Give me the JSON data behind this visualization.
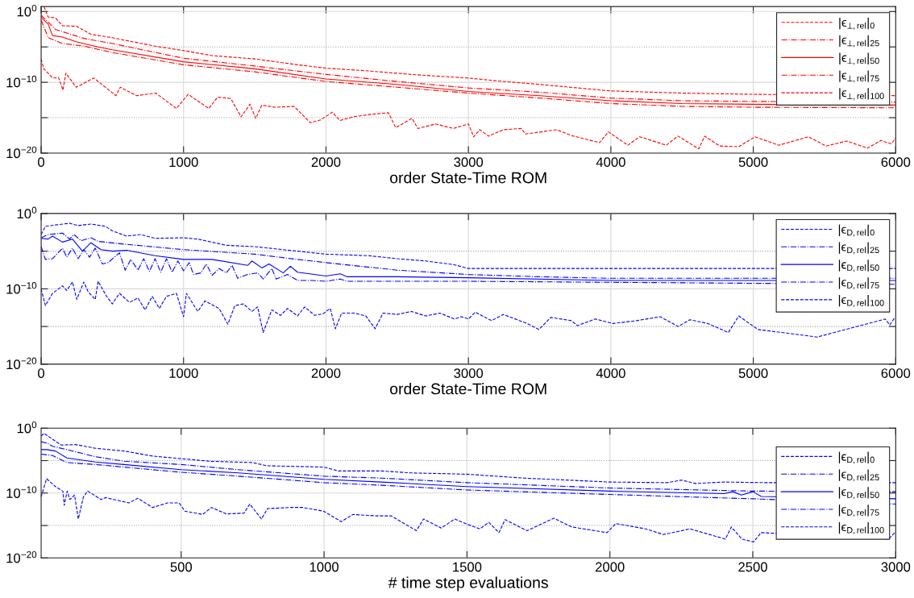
{
  "chart_data": [
    {
      "type": "line",
      "xlabel": "order State-Time ROM",
      "log": "y",
      "grid": true,
      "legend": "top right",
      "xlim": [
        0,
        6000
      ],
      "xticks": [
        0,
        1000,
        2000,
        3000,
        4000,
        5000,
        6000
      ],
      "ylim": [
        1e-20,
        5
      ],
      "yticks": [
        {
          "value": 1e-20,
          "label": "10$^{−20}$"
        },
        {
          "value": 1e-15,
          "label": null
        },
        {
          "value": 1e-10,
          "label": "10$^{−10}$"
        },
        {
          "value": 1e-05,
          "label": null
        },
        {
          "value": 1,
          "label": "10$^{0}$"
        }
      ],
      "series": [
        {
          "name": "|ϵ$_{⊥,rel}$|$_{0}$",
          "color": "#ff0000",
          "line_style": "dashed",
          "x": [
            20,
            50,
            100,
            150,
            250,
            350,
            500,
            650,
            800,
            1000,
            1200,
            1500,
            1800,
            2000,
            2300,
            2600,
            3000,
            3200,
            3500,
            4000,
            4500,
            5000,
            6000
          ],
          "values": [
            5,
            0.16,
            0.13,
            0.01,
            0.008,
            0.0006,
            0.0002,
            5e-05,
            1.3e-05,
            3e-06,
            6e-07,
            2e-07,
            3e-08,
            1e-08,
            4e-09,
            1.3e-09,
            4e-10,
            1.6e-10,
            5e-11,
            6e-12,
            3e-12,
            2e-12,
            1.3e-12
          ]
        },
        {
          "name": "|ϵ$_{⊥,rel}$|$_{25}$",
          "color": "#ff0000",
          "line_style": "dashdot",
          "x": [
            0,
            100,
            300,
            500,
            1000,
            1500,
            2000,
            2500,
            3000,
            3500,
            4000,
            4500,
            5000,
            6000
          ],
          "values": [
            0.3,
            0.003,
            0.00016,
            3e-05,
            2.5e-07,
            2e-08,
            1.3e-09,
            1.3e-10,
            1.6e-11,
            4e-12,
            6e-13,
            2.5e-13,
            2e-13,
            1.6e-13
          ]
        },
        {
          "name": "|ϵ$_{⊥,rel}$|$_{50}$",
          "color": "#ff0000",
          "line_style": "solid",
          "x": [
            0,
            50,
            80,
            150,
            250,
            400,
            500,
            1000,
            1500,
            2000,
            2500,
            3000,
            3500,
            4000,
            4500,
            5000,
            6000
          ],
          "values": [
            0.16,
            0.016,
            0.0004,
            0.00025,
            5e-05,
            1e-05,
            4e-06,
            8e-08,
            8e-09,
            3e-10,
            5e-11,
            5e-12,
            1.3e-12,
            2.5e-13,
            1e-13,
            8e-14,
            6e-14
          ]
        },
        {
          "name": "|ϵ$_{⊥,rel}$|$_{75}$",
          "color": "#ff0000",
          "line_style": "dashdot",
          "x": [
            0,
            50,
            150,
            300,
            500,
            1000,
            1500,
            2000,
            2500,
            3000,
            3500,
            4000,
            4500,
            5000,
            6000
          ],
          "values": [
            0.06,
            0.0002,
            3e-05,
            1.3e-05,
            1.6e-06,
            3e-08,
            3e-09,
            1.3e-10,
            2e-11,
            3e-12,
            6e-13,
            1e-13,
            4e-14,
            3e-14,
            2.5e-14
          ]
        },
        {
          "name": "|ϵ$_{⊥,rel}$|$_{100}$",
          "color": "#ff0000",
          "line_style": "dashed",
          "x": [
            0,
            19,
            81,
            122,
            153,
            174,
            246,
            370,
            525,
            556,
            670,
            805,
            950,
            1032,
            1177,
            1239,
            1332,
            1404,
            1466,
            1507,
            1549,
            1642,
            1776,
            1890,
            1963,
            2045,
            2097,
            2190,
            2314,
            2438,
            2490,
            2604,
            2645,
            2770,
            2894,
            3000,
            3037,
            3079,
            3141,
            3245,
            3370,
            3401,
            3620,
            3723,
            3921,
            3983,
            4119,
            4202,
            4389,
            4472,
            4617,
            4659,
            4763,
            4898,
            5012,
            5179,
            5387,
            5511,
            5657,
            5802,
            5896,
            5969,
            6000
          ],
          "values": [
            2e-07,
            8e-09,
            4e-10,
            5e-10,
            8e-12,
            2e-09,
            2e-11,
            4e-10,
            1.3e-12,
            2e-11,
            1.3e-12,
            3e-12,
            2e-14,
            2e-12,
            2e-14,
            8e-13,
            5e-13,
            1.3e-15,
            8e-14,
            8e-16,
            6e-14,
            3e-14,
            4e-14,
            2e-16,
            5e-16,
            6e-15,
            4e-16,
            1.3e-15,
            3e-15,
            5e-15,
            4e-17,
            8e-16,
            3e-17,
            1.3e-16,
            3e-17,
            1.3e-16,
            2e-18,
            2e-17,
            2.5e-18,
            2e-17,
            3e-17,
            5e-18,
            2e-17,
            3e-18,
            3e-19,
            1e-17,
            1.3e-19,
            2e-18,
            1.3e-19,
            2.5e-18,
            4e-20,
            2.5e-18,
            1e-19,
            8e-20,
            2e-18,
            1.3e-19,
            2e-18,
            1e-19,
            5e-19,
            5e-20,
            6e-19,
            2e-19,
            1.3e-18
          ]
        }
      ]
    },
    {
      "type": "line",
      "xlabel": "order State-Time ROM",
      "log": "y",
      "grid": true,
      "legend": "top right",
      "xlim": [
        0,
        6000
      ],
      "xticks": [
        0,
        1000,
        2000,
        3000,
        4000,
        5000,
        6000
      ],
      "ylim": [
        1e-20,
        1
      ],
      "yticks": [
        {
          "value": 1e-20,
          "label": "10$^{−20}$"
        },
        {
          "value": 1e-15,
          "label": null
        },
        {
          "value": 1e-10,
          "label": "10$^{−10}$"
        },
        {
          "value": 1e-05,
          "label": null
        },
        {
          "value": 1,
          "label": "10$^{0}$"
        }
      ],
      "series": [
        {
          "name": "|ϵ$_{D,rel}$|$_{0}$",
          "color": "#0000ff",
          "line_style": "dashed",
          "x": [
            0,
            30,
            100,
            200,
            260,
            350,
            450,
            500,
            600,
            700,
            800,
            1000,
            1100,
            1300,
            1500,
            1800,
            2000,
            2300,
            2500,
            2700,
            2900,
            3000,
            6000
          ],
          "values": [
            0.0016,
            0.02,
            0.03,
            0.05,
            0.025,
            0.04,
            0.02,
            0.005,
            0.001,
            0.0016,
            0.0005,
            0.0006,
            0.0004,
            6e-05,
            4e-05,
            1e-05,
            4e-06,
            2.5e-06,
            1e-06,
            5e-07,
            1.6e-07,
            5e-08,
            5e-08
          ]
        },
        {
          "name": "|ϵ$_{D,rel}$|$_{25}$",
          "color": "#0000ff",
          "line_style": "dashdot",
          "x": [
            0,
            50,
            150,
            200,
            230,
            280,
            350,
            400,
            600,
            1000,
            1500,
            1800,
            2000,
            2500,
            3000,
            3500,
            4000,
            6000
          ],
          "values": [
            0.0006,
            0.0016,
            0.0025,
            0.0004,
            0.0016,
            0.00025,
            0.0006,
            0.0002,
            8e-05,
            1.6e-05,
            4e-06,
            8e-07,
            3e-07,
            3e-08,
            8e-09,
            4e-09,
            2.5e-09,
            2.5e-09
          ]
        },
        {
          "name": "|ϵ$_{D,rel}$|$_{50}$",
          "color": "#0000ff",
          "line_style": "solid",
          "x": [
            0,
            50,
            80,
            150,
            220,
            290,
            350,
            420,
            500,
            600,
            800,
            1000,
            1200,
            1450,
            1480,
            1550,
            1600,
            1700,
            1750,
            1800,
            2000,
            2100,
            2150,
            2500,
            3000,
            4000,
            6000
          ],
          "values": [
            0.0005,
            0.0004,
            0.001,
            0.00016,
            0.0004,
            1e-05,
            0.00013,
            1.6e-05,
            1e-05,
            1.3e-05,
            2.5e-06,
            8e-07,
            8e-07,
            1.3e-07,
            5e-07,
            6e-08,
            2e-07,
            1.3e-08,
            1e-07,
            1.6e-08,
            5e-09,
            1e-08,
            4e-09,
            4e-09,
            3e-09,
            1.3e-09,
            1.3e-09
          ]
        },
        {
          "name": "|ϵ$_{D,rel}$|$_{75}$",
          "color": "#0000ff",
          "line_style": "dashdot",
          "x": [
            0,
            30,
            80,
            150,
            180,
            220,
            260,
            300,
            340,
            380,
            430,
            470,
            550,
            590,
            630,
            680,
            720,
            760,
            800,
            840,
            880,
            920,
            960,
            1000,
            1040,
            1070,
            1120,
            1160,
            1200,
            1250,
            1300,
            1340,
            1380,
            1450,
            1520,
            1560,
            1620,
            1650,
            1730,
            1800,
            1900,
            2000,
            2100,
            2150,
            3000,
            6000
          ],
          "values": [
            4e-05,
            8e-07,
            1e-06,
            2.5e-05,
            1.6e-06,
            2.5e-05,
            1e-06,
            1.6e-05,
            1.6e-06,
            2.5e-05,
            2e-07,
            3e-07,
            6e-06,
            3e-08,
            8e-07,
            3e-08,
            1e-06,
            2e-08,
            1e-06,
            1.6e-08,
            1e-06,
            1.6e-08,
            5e-07,
            2.5e-08,
            3e-07,
            8e-09,
            1.3e-08,
            2e-07,
            6e-09,
            5e-08,
            1.3e-08,
            1.3e-07,
            2.5e-09,
            8e-09,
            1.3e-08,
            2e-09,
            5e-08,
            2e-09,
            8e-09,
            1.3e-09,
            1.3e-09,
            1e-09,
            2e-09,
            1e-09,
            1e-09,
            4e-10
          ]
        },
        {
          "name": "|ϵ$_{D,rel}$|$_{100}$",
          "color": "#0000ff",
          "line_style": "dashed",
          "x": [
            0,
            30,
            80,
            150,
            180,
            220,
            250,
            300,
            330,
            380,
            400,
            460,
            500,
            550,
            620,
            680,
            730,
            780,
            830,
            880,
            950,
            1000,
            1020,
            1100,
            1150,
            1250,
            1311,
            1360,
            1420,
            1480,
            1520,
            1559,
            1620,
            1680,
            1730,
            1800,
            1850,
            1920,
            1980,
            2030,
            2066,
            2110,
            2200,
            2280,
            2345,
            2400,
            2500,
            2600,
            2700,
            2800,
            2900,
            2950,
            3000,
            3048,
            3162,
            3245,
            3412,
            3495,
            3578,
            3723,
            3765,
            3890,
            4015,
            4181,
            4347,
            4472,
            4555,
            4680,
            4825,
            4898,
            5033,
            5449,
            5927,
            5958,
            5994
          ],
          "values": [
            1e-10,
            6e-13,
            2.5e-11,
            2.5e-10,
            6e-11,
            8e-10,
            4e-12,
            8e-10,
            4e-11,
            4e-12,
            1e-09,
            1e-11,
            1e-12,
            2.5e-11,
            1.6e-12,
            6e-12,
            1.6e-13,
            1e-11,
            2.5e-13,
            1e-11,
            2.5e-11,
            2e-14,
            2.5e-11,
            1e-13,
            2.5e-12,
            2.5e-13,
            2e-15,
            6e-13,
            1e-12,
            1e-13,
            4e-13,
            1.6e-16,
            1.6e-13,
            3e-14,
            2.5e-13,
            2.5e-14,
            4e-13,
            3e-14,
            5e-14,
            2.5e-13,
            5e-16,
            6e-14,
            6e-14,
            2.5e-14,
            5e-16,
            6e-14,
            4e-14,
            1e-13,
            2.5e-14,
            6e-14,
            1e-14,
            2e-14,
            1e-14,
            8e-14,
            6e-15,
            4e-14,
            2.5e-15,
            4e-16,
            1.6e-14,
            6e-15,
            1.3e-15,
            1e-14,
            2.5e-15,
            6e-15,
            2e-14,
            1e-15,
            8e-15,
            2.5e-15,
            1.6e-16,
            2.5e-14,
            4e-16,
            4e-17,
            1e-14,
            1.6e-15,
            1.6e-14
          ]
        }
      ]
    },
    {
      "type": "line",
      "xlabel": "# time step evaluations",
      "log": "y",
      "grid": true,
      "legend": "right",
      "xlim": [
        10,
        3000
      ],
      "xticks": [
        500,
        1000,
        1500,
        2000,
        2500,
        3000
      ],
      "ylim": [
        1e-20,
        1
      ],
      "yticks": [
        {
          "value": 1e-20,
          "label": "10$^{−20}$"
        },
        {
          "value": 1e-15,
          "label": null
        },
        {
          "value": 1e-10,
          "label": "10$^{−10}$"
        },
        {
          "value": 1e-05,
          "label": null
        },
        {
          "value": 1,
          "label": "10$^{0}$"
        }
      ],
      "series": [
        {
          "name": "|ϵ$_{D,rel}$|$_{0}$",
          "color": "#0000ff",
          "line_style": "dashed",
          "x": [
            10,
            20,
            50,
            80,
            130,
            200,
            300,
            400,
            500,
            600,
            750,
            800,
            1000,
            1050,
            1200,
            1300,
            1500,
            1700,
            2000,
            2200,
            2250,
            2300,
            2400,
            2550,
            3000
          ],
          "values": [
            0.06,
            0.16,
            0.02,
            0.0025,
            0.003,
            0.0008,
            0.0003,
            5e-05,
            2e-05,
            8e-06,
            5e-06,
            1.6e-06,
            1e-06,
            2.5e-07,
            2.5e-07,
            1.3e-07,
            8e-08,
            2e-08,
            5e-09,
            4e-09,
            1e-08,
            3e-09,
            5e-09,
            4e-09,
            4e-09
          ]
        },
        {
          "name": "|ϵ$_{D,rel}$|$_{25}$",
          "color": "#0000ff",
          "line_style": "dashdot",
          "x": [
            10,
            30,
            50,
            100,
            200,
            300,
            500,
            700,
            1000,
            1200,
            1500,
            2000,
            2500,
            3000
          ],
          "values": [
            0.008,
            0.005,
            0.0016,
            0.0005,
            4e-05,
            8e-06,
            2.5e-06,
            4e-07,
            4e-08,
            2e-08,
            4e-09,
            6e-10,
            2e-10,
            1.6e-10
          ]
        },
        {
          "name": "|ϵ$_{D,rel}$|$_{50}$",
          "color": "#0000ff",
          "line_style": "solid",
          "x": [
            10,
            30,
            60,
            100,
            200,
            300,
            500,
            700,
            1000,
            1200,
            1500,
            2000,
            2400,
            2430,
            2460,
            2500,
            2530,
            3000
          ],
          "values": [
            0.0005,
            0.0005,
            0.0003,
            2.5e-05,
            6e-06,
            2.5e-06,
            4e-07,
            1.3e-07,
            1.3e-08,
            5e-09,
            1e-09,
            2e-10,
            8e-11,
            1.6e-10,
            5e-11,
            1.6e-10,
            3e-11,
            1.3e-11
          ]
        },
        {
          "name": "|ϵ$_{D,rel}$|$_{75}$",
          "color": "#0000ff",
          "line_style": "dashdot",
          "x": [
            10,
            50,
            100,
            200,
            300,
            500,
            700,
            1000,
            1200,
            1500,
            2000,
            2500,
            3000
          ],
          "values": [
            0.0001,
            6e-05,
            5e-06,
            2.5e-06,
            1e-06,
            1.6e-07,
            4e-08,
            4e-09,
            1.6e-09,
            3e-10,
            6e-11,
            1.3e-11,
            2e-12
          ]
        },
        {
          "name": "|ϵ$_{D,rel}$|$_{100}$",
          "color": "#0000ff",
          "line_style": "dashed",
          "x": [
            10,
            29,
            60,
            86,
            91,
            101,
            111,
            127,
            140,
            158,
            173,
            220,
            235,
            318,
            348,
            400,
            452,
            493,
            513,
            575,
            606,
            658,
            720,
            740,
            781,
            802,
            885,
            926,
            998,
            1060,
            1101,
            1184,
            1235,
            1323,
            1348,
            1410,
            1457,
            1500,
            1545,
            1576,
            1612,
            1633,
            1710,
            1804,
            1866,
            1990,
            2021,
            2125,
            2187,
            2280,
            2404,
            2425,
            2462,
            2503,
            2529,
            2975,
            2997
          ],
          "values": [
            2.5e-11,
            1.6e-08,
            1e-09,
            2e-10,
            1.3e-12,
            2e-10,
            1e-11,
            5e-11,
            1e-14,
            2.5e-11,
            2e-10,
            1e-11,
            2e-11,
            3e-12,
            1.6e-11,
            6e-13,
            3e-12,
            3e-12,
            1.6e-13,
            5e-14,
            6e-13,
            6e-14,
            8e-14,
            2e-12,
            1e-14,
            4e-13,
            6e-13,
            6e-13,
            1.6e-13,
            4e-15,
            5e-14,
            3e-14,
            3e-14,
            1.6e-16,
            1e-14,
            4e-16,
            1e-14,
            1.6e-15,
            3e-16,
            3e-15,
            8e-17,
            8e-15,
            1.6e-16,
            1.3e-14,
            6e-16,
            8e-17,
            2e-15,
            3e-16,
            4e-17,
            3e-16,
            8e-18,
            6e-16,
            8e-18,
            3e-18,
            8e-17,
            8e-18,
            8e-17
          ]
        }
      ]
    }
  ]
}
